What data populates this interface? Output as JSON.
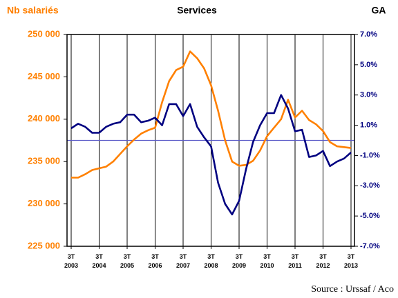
{
  "chart_data": {
    "type": "line",
    "title": "Services",
    "y_label": "Nb salariés",
    "y2_label": "GA",
    "source": "Source : Urssaf / Aco",
    "categories": [
      "3T 2003",
      null,
      null,
      null,
      "3T 2004",
      null,
      null,
      null,
      "3T 2005",
      null,
      null,
      null,
      "3T 2006",
      null,
      null,
      null,
      "3T 2007",
      null,
      null,
      null,
      "3T 2008",
      null,
      null,
      null,
      "3T 2009",
      null,
      null,
      null,
      "3T 2010",
      null,
      null,
      null,
      "3T 2011",
      null,
      null,
      null,
      "3T 2012",
      null,
      null,
      null,
      "3T 2013"
    ],
    "series": [
      {
        "color": "#ff8000",
        "axis": "y",
        "values": [
          233100,
          233100,
          233500,
          234000,
          234200,
          234400,
          235000,
          235900,
          236800,
          237600,
          238300,
          238700,
          239000,
          242000,
          244500,
          245800,
          246200,
          248000,
          247200,
          246000,
          244000,
          241000,
          237500,
          235000,
          234500,
          234600,
          235100,
          236300,
          238000,
          239000,
          240000,
          242300,
          240200,
          241000,
          239900,
          239400,
          238600,
          237300,
          236800,
          236700,
          236600
        ]
      },
      {
        "color": "#000080",
        "axis": "y2",
        "values": [
          0.8,
          1.1,
          0.9,
          0.5,
          0.5,
          0.9,
          1.1,
          1.2,
          1.7,
          1.7,
          1.2,
          1.3,
          1.5,
          1.0,
          2.4,
          2.4,
          1.6,
          2.4,
          0.9,
          0.2,
          -0.4,
          -2.8,
          -4.2,
          -4.9,
          -4.0,
          -1.9,
          -0.1,
          1.0,
          1.8,
          1.8,
          3.0,
          2.1,
          0.6,
          0.7,
          -1.1,
          -1.0,
          -0.7,
          -1.7,
          -1.4,
          -1.2,
          -0.8
        ]
      }
    ],
    "ylim": [
      225000,
      250000
    ],
    "yticks": [
      {
        "value": 225000,
        "label": "225 000"
      },
      {
        "value": 230000,
        "label": "230 000"
      },
      {
        "value": 235000,
        "label": "235 000"
      },
      {
        "value": 240000,
        "label": "240 000"
      },
      {
        "value": 245000,
        "label": "245 000"
      },
      {
        "value": 250000,
        "label": "250 000"
      }
    ],
    "y2lim": [
      -7,
      7
    ],
    "y2ticks": [
      {
        "value": -7,
        "label": "-7.0%"
      },
      {
        "value": -5,
        "label": "-5.0%"
      },
      {
        "value": -3,
        "label": "-3.0%"
      },
      {
        "value": -1,
        "label": "-1.0%"
      },
      {
        "value": 1,
        "label": "1.0%"
      },
      {
        "value": 3,
        "label": "3.0%"
      },
      {
        "value": 5,
        "label": "5.0%"
      },
      {
        "value": 7,
        "label": "7.0%"
      }
    ],
    "y2_reference_line": 0,
    "reference_color": "#5a5ac8",
    "y_label_color": "#ff8000",
    "y2_label_color": "#000080",
    "grid": true
  }
}
